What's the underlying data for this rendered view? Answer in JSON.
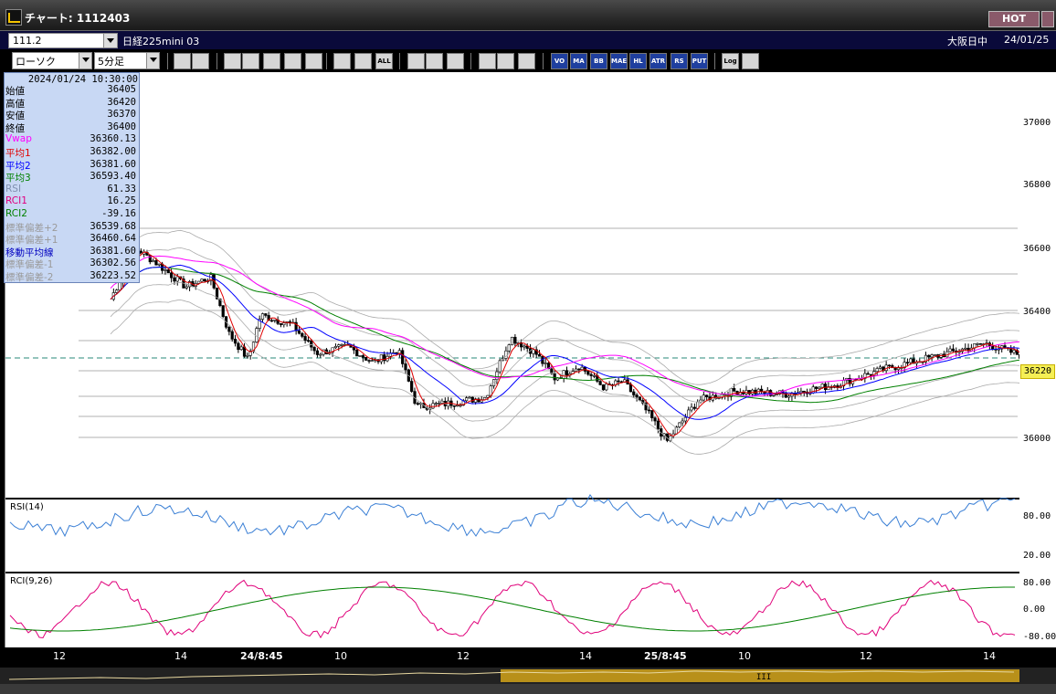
{
  "window": {
    "title": "チャート: 1112403",
    "hot_label": "HOT"
  },
  "symbol_bar": {
    "symbol_value": "111.2",
    "instrument": "日経225mini 03",
    "exchange": "大阪日中",
    "date": "24/01/25"
  },
  "toolbar": {
    "chart_type": "ローソク",
    "interval": "5分足",
    "buttons": [
      "zoom-in",
      "scroll",
      "mark-down",
      "zoom",
      "cross",
      "select",
      "grid",
      "bar-a",
      "bar-b",
      "ALL",
      "pencil",
      "arrow",
      "draw",
      "tools",
      "wrench",
      "palette",
      "VO",
      "MA",
      "BB",
      "MAE",
      "HL",
      "ATR",
      "RS",
      "PUT",
      "Log",
      "export"
    ]
  },
  "info_panel": {
    "datetime": "2024/01/24  10:30:00",
    "rows": [
      {
        "label": "始値",
        "value": "36405",
        "color": "#000000"
      },
      {
        "label": "高値",
        "value": "36420",
        "color": "#000000"
      },
      {
        "label": "安値",
        "value": "36370",
        "color": "#000000"
      },
      {
        "label": "終値",
        "value": "36400",
        "color": "#000000"
      },
      {
        "label": "Vwap",
        "value": "36360.13",
        "color": "#ff00ff"
      },
      {
        "label": "平均1",
        "value": "36382.00",
        "color": "#e00000"
      },
      {
        "label": "平均2",
        "value": "36381.60",
        "color": "#0000ff"
      },
      {
        "label": "平均3",
        "value": "36593.40",
        "color": "#008000"
      },
      {
        "label": "RSI",
        "value": "61.33",
        "color": "#8090b0"
      },
      {
        "label": "RCI1",
        "value": "16.25",
        "color": "#e00080"
      },
      {
        "label": "RCI2",
        "value": "-39.16",
        "color": "#008000"
      },
      {
        "label": "標準偏差+2",
        "value": "36539.68",
        "color": "#9a9a9a"
      },
      {
        "label": "標準偏差+1",
        "value": "36460.64",
        "color": "#9a9a9a"
      },
      {
        "label": "移動平均線",
        "value": "36381.60",
        "color": "#0000c0"
      },
      {
        "label": "標準偏差-1",
        "value": "36302.56",
        "color": "#9a9a9a"
      },
      {
        "label": "標準偏差-2",
        "value": "36223.52",
        "color": "#9a9a9a"
      }
    ]
  },
  "price_axis": {
    "labels": [
      "37000",
      "36800",
      "36600",
      "36400",
      "36000"
    ],
    "current_price": "36220"
  },
  "rsi_pane": {
    "title": "RSI(14)",
    "levels": [
      "80.00",
      "20.00"
    ]
  },
  "rci_pane": {
    "title": "RCI(9,26)",
    "levels": [
      "80.00",
      "0.00",
      "-80.00"
    ]
  },
  "time_axis": {
    "labels": [
      "12",
      "14",
      "24/8:45",
      "10",
      "12",
      "14",
      "25/8:45",
      "10",
      "12",
      "14"
    ]
  },
  "scroll": {
    "thumb_label": "III"
  },
  "colors": {
    "up_candle": "#ffffff",
    "down_candle": "#000000",
    "ma_fast": "#e00000",
    "ma_blue": "#0000ff",
    "ma_green": "#008000",
    "vwap": "#ff00ff",
    "band": "#aaaaaa",
    "rsi_line": "#3a7fd5",
    "rci_fast": "#e0007a",
    "rci_slow": "#008000"
  }
}
